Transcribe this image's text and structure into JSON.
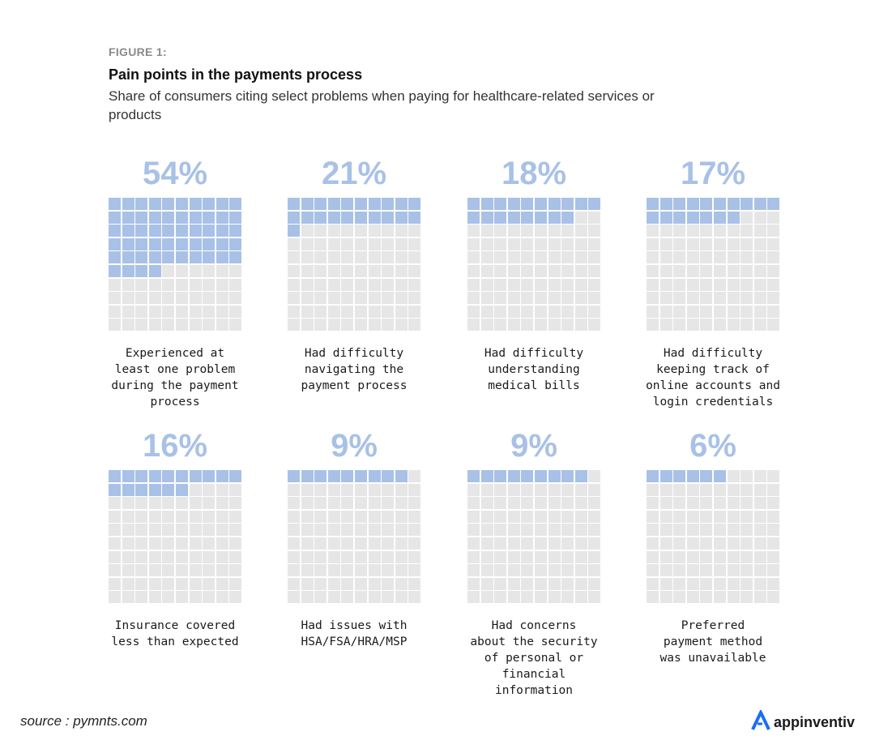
{
  "figure_label": "FIGURE 1:",
  "title": "Pain points in the payments process",
  "subtitle": "Share of consumers citing select problems when paying for healthcare-related services or products",
  "chart_data": {
    "type": "waffle",
    "title": "Pain points in the payments process",
    "subtitle": "Share of consumers citing select problems when paying for healthcare-related services or products",
    "unit": "%",
    "grid": {
      "rows": 10,
      "cols": 10
    },
    "colors": {
      "filled": "#a9c1e6",
      "empty": "#e6e6e6"
    },
    "items": [
      {
        "value": 54,
        "value_label": "54%",
        "label": "Experienced at\nleast one problem\nduring the payment\nprocess"
      },
      {
        "value": 21,
        "value_label": "21%",
        "label": "Had difficulty\nnavigating the\npayment process"
      },
      {
        "value": 18,
        "value_label": "18%",
        "label": "Had difficulty\nunderstanding\nmedical bills"
      },
      {
        "value": 17,
        "value_label": "17%",
        "label": "Had difficulty\nkeeping track of\nonline accounts and\nlogin credentials"
      },
      {
        "value": 16,
        "value_label": "16%",
        "label": "Insurance covered\nless than expected"
      },
      {
        "value": 9,
        "value_label": "9%",
        "label": "Had issues with\nHSA/FSA/HRA/MSP"
      },
      {
        "value": 9,
        "value_label": "9%",
        "label": "Had concerns\nabout the security\nof personal or\nfinancial information"
      },
      {
        "value": 6,
        "value_label": "6%",
        "label": "Preferred\npayment method\nwas unavailable"
      }
    ]
  },
  "footer": {
    "source": "source : pymnts.com",
    "brand": "appinventiv",
    "brand_color": "#1c6ef2",
    "brand_icon": "appinventiv-logo-icon"
  }
}
